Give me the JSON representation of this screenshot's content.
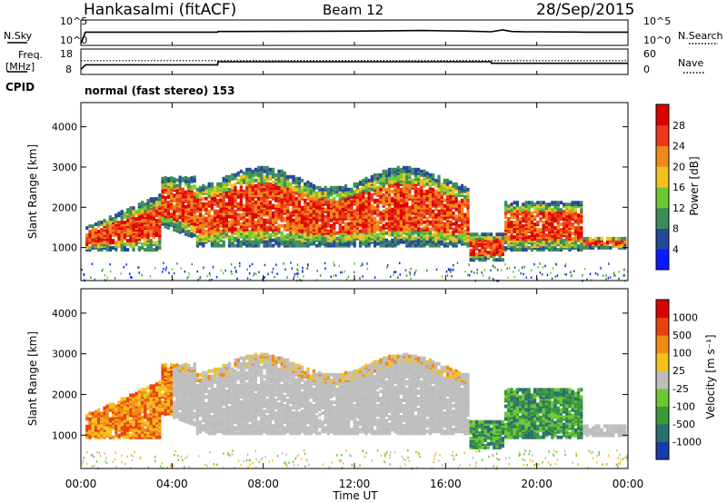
{
  "header": {
    "station": "Hankasalmi (fitACF)",
    "beam": "Beam 12",
    "date": "28/Sep/2015"
  },
  "panels": {
    "nsky_label": "N.Sky",
    "nsearch_label": "N.Search",
    "freq_label_line1": "Freq.",
    "freq_label_line2": "[MHz]",
    "nave_label": "Nave",
    "cpid_label": "CPID",
    "cpid_value": "normal (fast stereo) 153"
  },
  "chart_data": [
    {
      "type": "line",
      "name": "noise",
      "left_ticks": [
        "10^5",
        "10^0"
      ],
      "right_ticks": [
        "10^5",
        "10^0"
      ],
      "x_hours": [
        0,
        0.2,
        6,
        6.01,
        12,
        15,
        16,
        17,
        18,
        18.5,
        18.9,
        19.5,
        20,
        22,
        24
      ],
      "y_log": [
        0,
        3.5,
        3.5,
        3.7,
        3.8,
        4.0,
        3.9,
        3.8,
        3.6,
        4.2,
        3.7,
        3.6,
        3.6,
        3.5,
        3.5
      ]
    },
    {
      "type": "line",
      "name": "frequency",
      "left_ticks": [
        "18",
        "8"
      ],
      "right_ticks": [
        "60",
        "0"
      ],
      "frequency_mhz": {
        "x_hours": [
          0,
          0.2,
          6,
          6.01,
          18,
          18.01,
          24
        ],
        "values": [
          8,
          11,
          11,
          13,
          13,
          12,
          12
        ]
      },
      "nave": {
        "value": 33
      }
    },
    {
      "type": "heatmap",
      "name": "power",
      "ylabel": "Slant Range [km]",
      "yticks": [
        1000,
        2000,
        3000,
        4000
      ],
      "ylim": [
        180,
        4600
      ],
      "xlim": [
        0,
        24
      ],
      "colorbar_label": "Power [dB]",
      "colorbar_ticks": [
        4,
        8,
        12,
        16,
        20,
        24,
        28
      ],
      "colorbar_colors": [
        "#0a1aff",
        "#27479a",
        "#3b8c5a",
        "#6fc832",
        "#f4c21a",
        "#f08a14",
        "#ee3a1a",
        "#dd0000"
      ]
    },
    {
      "type": "heatmap",
      "name": "velocity",
      "ylabel": "Slant Range [km]",
      "yticks": [
        1000,
        2000,
        3000,
        4000
      ],
      "ylim": [
        180,
        4600
      ],
      "xlim": [
        0,
        24
      ],
      "xticks": [
        "00:00",
        "04:00",
        "08:00",
        "12:00",
        "16:00",
        "20:00",
        "00:00"
      ],
      "xlabel": "Time UT",
      "colorbar_label": "Velocity [m s⁻¹]",
      "colorbar_ticks": [
        "1000",
        "500",
        "100",
        "25",
        "-25",
        "-100",
        "-500",
        "-1000"
      ],
      "colorbar_colors": [
        "#1a3aaa",
        "#2a6e6e",
        "#3a9a3a",
        "#6fc832",
        "#bebebe",
        "#f4c21a",
        "#f08a14",
        "#e8420a",
        "#dd0000"
      ]
    }
  ]
}
